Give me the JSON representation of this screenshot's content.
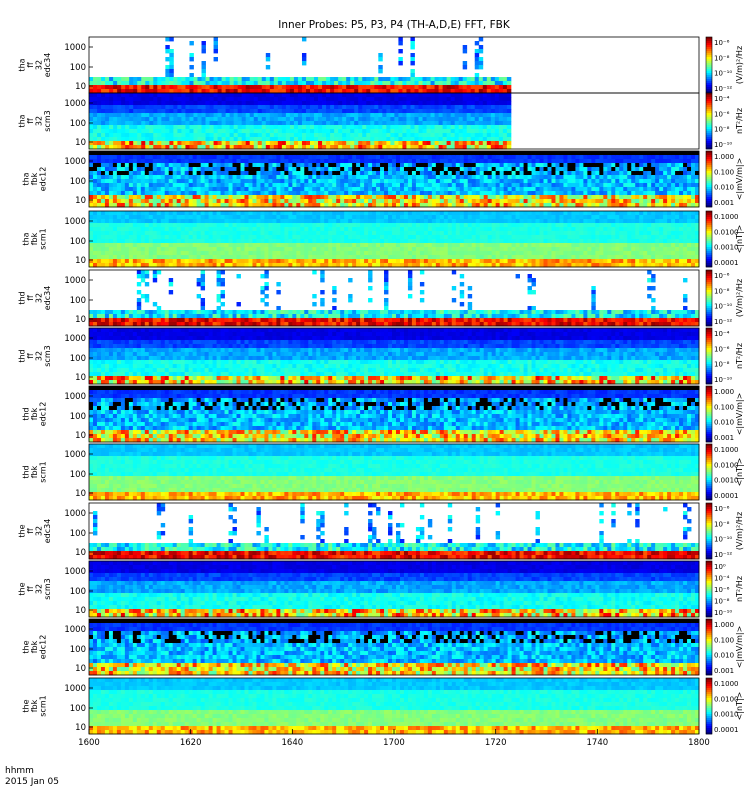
{
  "title": "Inner Probes: P5, P3, P4 (TH-A,D,E) FFT, FBK",
  "time_axis": {
    "unit_label": "hhmm",
    "date_label": "2015 Jan 05",
    "ticks": [
      "1600",
      "1620",
      "1640",
      "1700",
      "1720",
      "1740",
      "1800"
    ]
  },
  "chart_data": [
    {
      "type": "heatmap",
      "label": [
        "tha",
        "ff",
        "32",
        "edc34"
      ],
      "y_ticks": [
        "1000",
        "100",
        "10"
      ],
      "data_end": "1723",
      "cbar_ticks": [
        "10⁻⁶",
        "10⁻⁸",
        "10⁻¹⁰",
        "10⁻¹²"
      ],
      "cbar_label": "(V/m)²/Hz",
      "kind": "edc34"
    },
    {
      "type": "heatmap",
      "label": [
        "tha",
        "ff",
        "32",
        "scm3"
      ],
      "y_ticks": [
        "1000",
        "100",
        "10"
      ],
      "data_end": "1723",
      "cbar_ticks": [
        "10⁻⁴",
        "10⁻⁶",
        "10⁻⁸",
        "10⁻¹⁰"
      ],
      "cbar_label": "nT²/Hz",
      "kind": "scm3"
    },
    {
      "type": "heatmap",
      "label": [
        "tha",
        "fbk",
        "edc12"
      ],
      "y_ticks": [
        "1000",
        "100",
        "10"
      ],
      "data_end": "",
      "cbar_ticks": [
        "1.000",
        "0.100",
        "0.010",
        "0.001"
      ],
      "cbar_label": "<|mV/m|>",
      "kind": "edc12"
    },
    {
      "type": "heatmap",
      "label": [
        "tha",
        "fbk",
        "scm1"
      ],
      "y_ticks": [
        "1000",
        "100",
        "10"
      ],
      "data_end": "",
      "cbar_ticks": [
        "0.1000",
        "0.0100",
        "0.0010",
        "0.0001"
      ],
      "cbar_label": "<|nT|>",
      "kind": "scm1"
    },
    {
      "type": "heatmap",
      "label": [
        "thd",
        "ff",
        "32",
        "edc34"
      ],
      "y_ticks": [
        "1000",
        "100",
        "10"
      ],
      "data_end": "",
      "cbar_ticks": [
        "10⁻⁶",
        "10⁻⁸",
        "10⁻¹⁰",
        "10⁻¹²"
      ],
      "cbar_label": "(V/m)²/Hz",
      "kind": "edc34"
    },
    {
      "type": "heatmap",
      "label": [
        "thd",
        "ff",
        "32",
        "scm3"
      ],
      "y_ticks": [
        "1000",
        "100",
        "10"
      ],
      "data_end": "",
      "cbar_ticks": [
        "10⁻⁴",
        "10⁻⁶",
        "10⁻⁸",
        "10⁻¹⁰"
      ],
      "cbar_label": "nT²/Hz",
      "kind": "scm3"
    },
    {
      "type": "heatmap",
      "label": [
        "thd",
        "fbk",
        "edc12"
      ],
      "y_ticks": [
        "1000",
        "100",
        "10"
      ],
      "data_end": "",
      "cbar_ticks": [
        "1.000",
        "0.100",
        "0.010",
        "0.001"
      ],
      "cbar_label": "<|mV/m|>",
      "kind": "edc12"
    },
    {
      "type": "heatmap",
      "label": [
        "thd",
        "fbk",
        "scm1"
      ],
      "y_ticks": [
        "1000",
        "100",
        "10"
      ],
      "data_end": "",
      "cbar_ticks": [
        "0.1000",
        "0.0100",
        "0.0010",
        "0.0001"
      ],
      "cbar_label": "<|nT|>",
      "kind": "scm1"
    },
    {
      "type": "heatmap",
      "label": [
        "the",
        "ff",
        "32",
        "edc34"
      ],
      "y_ticks": [
        "1000",
        "100",
        "10"
      ],
      "data_end": "",
      "cbar_ticks": [
        "10⁻⁶",
        "10⁻⁸",
        "10⁻¹⁰",
        "10⁻¹²"
      ],
      "cbar_label": "(V/m)²/Hz",
      "kind": "edc34"
    },
    {
      "type": "heatmap",
      "label": [
        "the",
        "ff",
        "32",
        "scm3"
      ],
      "y_ticks": [
        "1000",
        "100",
        "10"
      ],
      "data_end": "",
      "cbar_ticks": [
        "10⁰",
        "10⁻⁴",
        "10⁻⁶",
        "10⁻⁸",
        "10⁻¹⁰"
      ],
      "cbar_label": "nT²/Hz",
      "kind": "scm3"
    },
    {
      "type": "heatmap",
      "label": [
        "the",
        "fbk",
        "edc12"
      ],
      "y_ticks": [
        "1000",
        "100",
        "10"
      ],
      "data_end": "",
      "cbar_ticks": [
        "1.000",
        "0.100",
        "0.010",
        "0.001"
      ],
      "cbar_label": "<|mV/m|>",
      "kind": "edc12"
    },
    {
      "type": "heatmap",
      "label": [
        "the",
        "fbk",
        "scm1"
      ],
      "y_ticks": [
        "1000",
        "100",
        "10"
      ],
      "data_end": "",
      "cbar_ticks": [
        "0.1000",
        "0.0100",
        "0.0010",
        "0.0001"
      ],
      "cbar_label": "<|nT|>",
      "kind": "scm1"
    }
  ]
}
